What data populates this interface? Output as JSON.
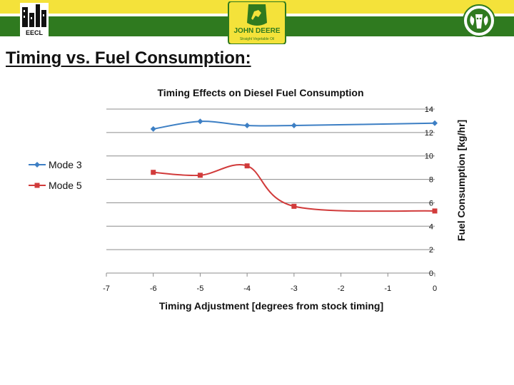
{
  "header": {
    "logos": [
      {
        "name": "eecl-logo",
        "text": "EECL"
      },
      {
        "name": "john-deere-logo",
        "text": "JOHN DEERE",
        "subtext": "Straight Vegetable Oil"
      },
      {
        "name": "csu-ram-logo"
      }
    ],
    "colors": {
      "yellow": "#f4e23a",
      "green": "#2f7a1f"
    }
  },
  "slide": {
    "title": "Timing vs. Fuel Consumption:"
  },
  "chart_data": {
    "type": "line",
    "title": "Timing Effects on Diesel Fuel Consumption",
    "xlabel": "Timing  Adjustment [degrees from stock timing]",
    "ylabel": "Fuel Consumption [kg/hr]",
    "xlim": [
      -7,
      0
    ],
    "ylim": [
      0,
      14
    ],
    "xticks": [
      -7,
      -6,
      -5,
      -4,
      -3,
      -2,
      -1,
      0
    ],
    "yticks": [
      0,
      2,
      4,
      6,
      8,
      10,
      12,
      14
    ],
    "grid": true,
    "y_axis_side": "right",
    "legend_position": "left",
    "smooth": true,
    "series": [
      {
        "name": "Mode 3",
        "color": "#3d7fc4",
        "marker": "diamond",
        "x": [
          -6,
          -5,
          -4,
          -3,
          0
        ],
        "y": [
          12.3,
          12.95,
          12.6,
          12.6,
          12.8
        ]
      },
      {
        "name": "Mode 5",
        "color": "#d13b3b",
        "marker": "square",
        "x": [
          -6,
          -5,
          -4,
          -3,
          0
        ],
        "y": [
          8.6,
          8.35,
          9.15,
          5.7,
          5.3
        ]
      }
    ]
  }
}
